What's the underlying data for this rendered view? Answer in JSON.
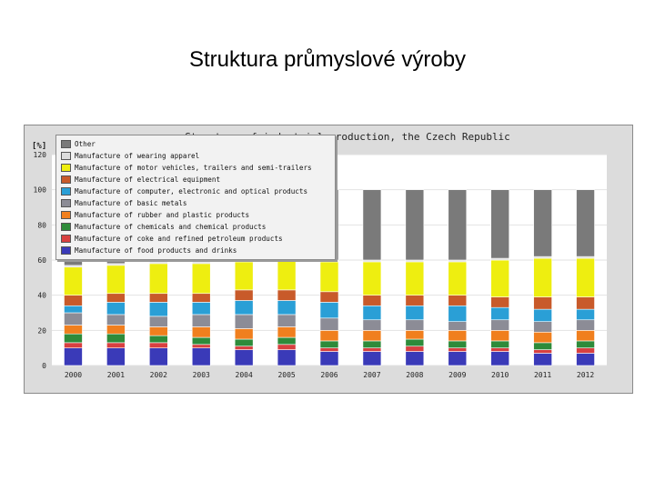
{
  "slide": {
    "title": "Struktura průmyslové výroby"
  },
  "chart_data": {
    "type": "bar",
    "stacked": true,
    "title": "Structure of industrial production, the Czech Republic",
    "ylabel": "[%]",
    "ylim": [
      0,
      120
    ],
    "yticks": [
      0,
      20,
      40,
      60,
      80,
      100,
      120
    ],
    "grid": true,
    "legend_position": "top-left overlay",
    "categories": [
      "2000",
      "2001",
      "2002",
      "2003",
      "2004",
      "2005",
      "2006",
      "2007",
      "2008",
      "2009",
      "2010",
      "2011",
      "2012"
    ],
    "series": [
      {
        "name": "Manufacture of food products and drinks",
        "color": "#3a3ab8",
        "values": [
          10,
          10,
          10,
          10,
          9,
          9,
          8,
          8,
          8,
          8,
          8,
          7,
          7
        ]
      },
      {
        "name": "Manufacture of coke and refined petroleum products",
        "color": "#d84040",
        "values": [
          3,
          3,
          3,
          2,
          2,
          3,
          2,
          2,
          3,
          2,
          2,
          2,
          3
        ]
      },
      {
        "name": "Manufacture of chemicals and chemical products",
        "color": "#2e8b3a",
        "values": [
          5,
          5,
          4,
          4,
          4,
          4,
          4,
          4,
          4,
          4,
          4,
          4,
          4
        ]
      },
      {
        "name": "Manufacture of rubber and plastic products",
        "color": "#f07f1e",
        "values": [
          5,
          5,
          5,
          6,
          6,
          6,
          6,
          6,
          5,
          6,
          6,
          6,
          6
        ]
      },
      {
        "name": "Manufacture of basic metals",
        "color": "#8c8c96",
        "values": [
          7,
          6,
          6,
          7,
          8,
          7,
          7,
          6,
          6,
          5,
          6,
          6,
          6
        ]
      },
      {
        "name": "Manufacture of computer, electronic and optical products",
        "color": "#2a9fd6",
        "values": [
          4,
          7,
          8,
          7,
          8,
          8,
          9,
          8,
          8,
          9,
          7,
          7,
          6
        ]
      },
      {
        "name": "Manufacture of electrical equipment",
        "color": "#c85a2a",
        "values": [
          6,
          5,
          5,
          5,
          6,
          6,
          6,
          6,
          6,
          6,
          6,
          7,
          7
        ]
      },
      {
        "name": "Manufacture of motor vehicles, trailers and semi-trailers",
        "color": "#eeee10",
        "values": [
          16,
          16,
          17,
          17,
          16,
          17,
          17,
          19,
          19,
          19,
          21,
          22,
          22
        ]
      },
      {
        "name": "Manufacture of wearing apparel",
        "color": "#dcdcdc",
        "values": [
          1,
          1,
          1,
          1,
          1,
          1,
          1,
          1,
          1,
          1,
          1,
          1,
          1
        ]
      },
      {
        "name": "Other",
        "color": "#7a7a7a",
        "values": [
          43,
          42,
          41,
          40,
          40,
          39,
          40,
          40,
          40,
          40,
          39,
          38,
          38
        ]
      }
    ]
  }
}
